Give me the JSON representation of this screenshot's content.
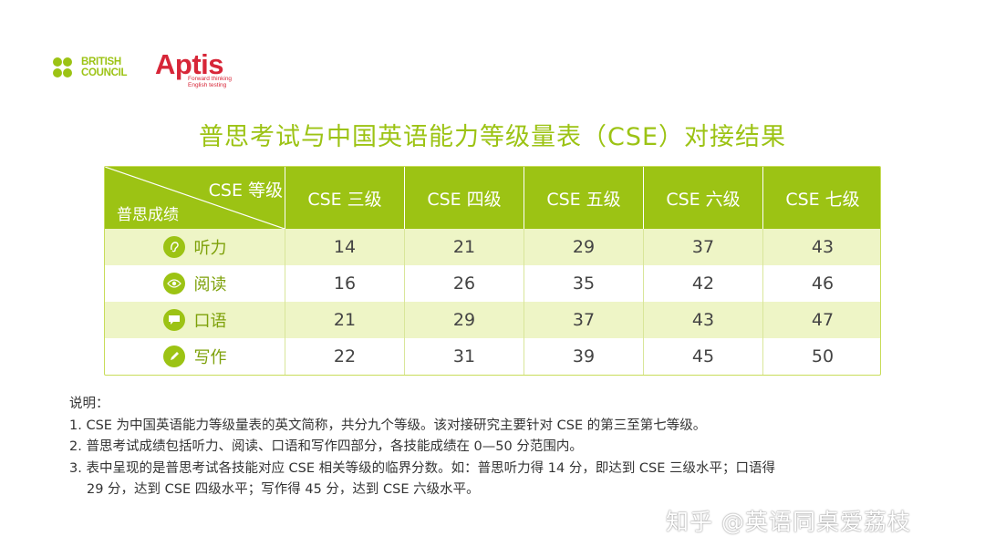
{
  "logos": {
    "british_council": "BRITISH\nCOUNCIL",
    "aptis": "Aptis",
    "aptis_tagline": "Forward thinking\nEnglish testing"
  },
  "title": "普思考试与中国英语能力等级量表（CSE）对接结果",
  "table": {
    "corner_top": "CSE 等级",
    "corner_bottom": "普思成绩",
    "columns": [
      "CSE 三级",
      "CSE 四级",
      "CSE 五级",
      "CSE 六级",
      "CSE 七级"
    ],
    "rows": [
      {
        "label": "听力",
        "icon": "ear-icon",
        "values": [
          "14",
          "21",
          "29",
          "37",
          "43"
        ]
      },
      {
        "label": "阅读",
        "icon": "eye-icon",
        "values": [
          "16",
          "26",
          "35",
          "42",
          "46"
        ]
      },
      {
        "label": "口语",
        "icon": "speech-bubble-icon",
        "values": [
          "21",
          "29",
          "37",
          "43",
          "47"
        ]
      },
      {
        "label": "写作",
        "icon": "pencil-icon",
        "values": [
          "22",
          "31",
          "39",
          "45",
          "50"
        ]
      }
    ]
  },
  "notes": {
    "heading": "说明：",
    "items": [
      "1. CSE 为中国英语能力等级量表的英文简称，共分九个等级。该对接研究主要针对 CSE 的第三至第七等级。",
      "2. 普思考试成绩包括听力、阅读、口语和写作四部分，各技能成绩在 0—50 分范围内。",
      "3. 表中呈现的是普思考试各技能对应 CSE 相关等级的临界分数。如：普思听力得 14 分，即达到 CSE 三级水平；口语得",
      "29 分，达到 CSE 四级水平；写作得 45 分，达到 CSE 六级水平。"
    ]
  },
  "watermark": "知乎 @英语同桌爱荔枝",
  "colors": {
    "accent_green": "#9cc314",
    "row_alt": "#eef5c6",
    "aptis_red": "#d72638"
  }
}
